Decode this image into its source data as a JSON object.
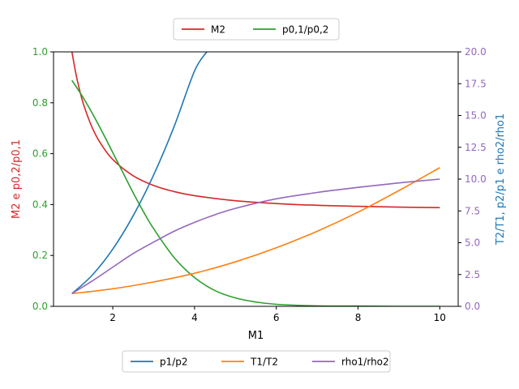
{
  "chart_data": {
    "type": "line",
    "xlabel": "M1",
    "x_ticks": [
      2,
      4,
      6,
      8,
      10
    ],
    "xlim": [
      0.55,
      10.45
    ],
    "y_left": {
      "label": "M2 e p0,2/p0,1",
      "lim": [
        0,
        1
      ],
      "ticks": [
        "0.0",
        "0.2",
        "0.4",
        "0.6",
        "0.8",
        "1.0"
      ],
      "color": "#2ca02c",
      "label_color": "#d62728"
    },
    "y_right": {
      "label": "T2/T1, p2/p1 e rho2/rho1",
      "lim": [
        0,
        20
      ],
      "ticks": [
        "0.0",
        "2.5",
        "5.0",
        "7.5",
        "10.0",
        "12.5",
        "15.0",
        "17.5",
        "20.0"
      ],
      "color": "#9467bd",
      "label_color": "#1f77b4"
    },
    "legend_top": [
      {
        "name": "M2",
        "color": "#d62728"
      },
      {
        "name": "p0,1/p0,2",
        "color": "#2ca02c"
      }
    ],
    "legend_bottom": [
      {
        "name": "p1/p2",
        "color": "#1f77b4"
      },
      {
        "name": "T1/T2",
        "color": "#ff7f0e"
      },
      {
        "name": "rho1/rho2",
        "color": "#9467bd"
      }
    ],
    "series": [
      {
        "name": "M2",
        "axis": "left",
        "color": "#d62728",
        "x": [
          1.0,
          1.1,
          1.2,
          1.3,
          1.5,
          1.7,
          2.0,
          2.5,
          3.0,
          3.5,
          4.0,
          5.0,
          6.0,
          7.0,
          8.0,
          9.0,
          10.0
        ],
        "y": [
          1.0,
          0.912,
          0.842,
          0.786,
          0.701,
          0.641,
          0.577,
          0.513,
          0.475,
          0.451,
          0.435,
          0.415,
          0.404,
          0.397,
          0.393,
          0.39,
          0.388
        ]
      },
      {
        "name": "p0,1/p0,2",
        "axis": "left",
        "color": "#2ca02c",
        "x": [
          1.0,
          1.25,
          1.5,
          1.75,
          2.0,
          2.25,
          2.5,
          2.75,
          3.0,
          3.5,
          4.0,
          4.5,
          5.0,
          5.5,
          6.0,
          7.0,
          8.0,
          9.0,
          10.0
        ],
        "y": [
          0.888,
          0.827,
          0.758,
          0.683,
          0.604,
          0.525,
          0.446,
          0.372,
          0.305,
          0.192,
          0.113,
          0.062,
          0.033,
          0.017,
          0.008,
          0.002,
          0.001,
          0.0,
          0.0
        ]
      },
      {
        "name": "p1/p2",
        "axis": "right",
        "color": "#1f77b4",
        "x": [
          1.0,
          1.5,
          2.0,
          2.5,
          3.0,
          3.5,
          4.0,
          4.3
        ],
        "y": [
          1.0,
          2.46,
          4.5,
          7.13,
          10.33,
          14.13,
          18.5,
          20.0
        ]
      },
      {
        "name": "T1/T2",
        "axis": "right",
        "color": "#ff7f0e",
        "x": [
          1.0,
          2.0,
          3.0,
          4.0,
          5.0,
          6.0,
          7.0,
          8.0,
          9.0,
          10.0
        ],
        "y": [
          1.0,
          1.38,
          1.92,
          2.6,
          3.5,
          4.6,
          5.9,
          7.4,
          9.1,
          10.9
        ]
      },
      {
        "name": "rho1/rho2",
        "axis": "right",
        "color": "#9467bd",
        "x": [
          1.0,
          1.5,
          2.0,
          2.5,
          3.0,
          3.5,
          4.0,
          4.5,
          5.0,
          6.0,
          7.0,
          8.0,
          9.0,
          10.0
        ],
        "y": [
          1.0,
          2.0,
          3.08,
          4.15,
          5.05,
          5.9,
          6.6,
          7.2,
          7.7,
          8.45,
          8.95,
          9.35,
          9.7,
          10.0
        ]
      }
    ]
  }
}
